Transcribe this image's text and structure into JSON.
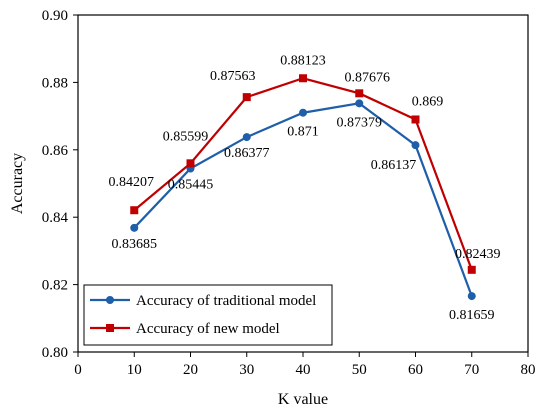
{
  "chart_data": {
    "type": "line",
    "xlabel": "K value",
    "ylabel": "Accuracy",
    "xlim": [
      0,
      80
    ],
    "ylim": [
      0.8,
      0.9
    ],
    "xticks": [
      0,
      10,
      20,
      30,
      40,
      50,
      60,
      70,
      80
    ],
    "xtick_labels": [
      "0",
      "10",
      "20",
      "30",
      "40",
      "50",
      "60",
      "70",
      "80"
    ],
    "yticks": [
      0.8,
      0.82,
      0.84,
      0.86,
      0.88,
      0.9
    ],
    "ytick_labels": [
      "0.80",
      "0.82",
      "0.84",
      "0.86",
      "0.88",
      "0.90"
    ],
    "grid": false,
    "legend_position": "bottom-left",
    "x": [
      10,
      20,
      30,
      40,
      50,
      60,
      70
    ],
    "series": [
      {
        "name": "Accuracy of traditional model",
        "color": "#1f5ea8",
        "marker": "circle",
        "values": [
          0.83685,
          0.85445,
          0.86377,
          0.871,
          0.87379,
          0.86137,
          0.81659
        ],
        "labels": [
          "0.83685",
          "0.85445",
          "0.86377",
          "0.871",
          "0.87379",
          "0.86137",
          "0.81659"
        ],
        "label_placement": "below"
      },
      {
        "name": "Accuracy of new model",
        "color": "#c00000",
        "marker": "square",
        "values": [
          0.84207,
          0.85599,
          0.87563,
          0.88123,
          0.87676,
          0.869,
          0.82439
        ],
        "labels": [
          "0.84207",
          "0.85599",
          "0.87563",
          "0.88123",
          "0.87676",
          "0.869",
          "0.82439"
        ],
        "label_placement": "above"
      }
    ]
  }
}
